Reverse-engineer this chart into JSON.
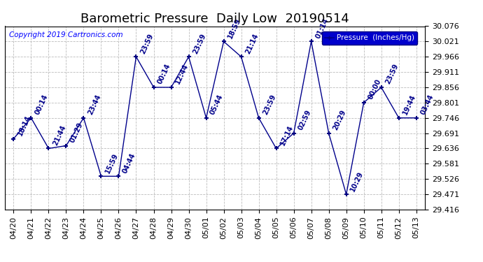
{
  "title": "Barometric Pressure  Daily Low  20190514",
  "copyright": "Copyright 2019 Cartronics.com",
  "legend_label": "Pressure  (Inches/Hg)",
  "dates": [
    "04/20",
    "04/21",
    "04/22",
    "04/23",
    "04/24",
    "04/25",
    "04/26",
    "04/27",
    "04/28",
    "04/29",
    "04/30",
    "05/01",
    "05/02",
    "05/03",
    "05/04",
    "05/05",
    "05/06",
    "05/07",
    "05/08",
    "05/09",
    "05/10",
    "05/11",
    "05/12",
    "05/13"
  ],
  "values": [
    29.671,
    29.746,
    29.636,
    29.646,
    29.746,
    29.536,
    29.536,
    29.966,
    29.856,
    29.856,
    29.966,
    29.746,
    30.021,
    29.966,
    29.746,
    29.636,
    29.691,
    30.021,
    29.691,
    29.471,
    29.801,
    29.856,
    29.746,
    29.746
  ],
  "annotations": [
    "18:14",
    "00:14",
    "21:44",
    "01:29",
    "23:44",
    "15:59",
    "04:44",
    "23:59",
    "00:14",
    "12:44",
    "23:59",
    "05:44",
    "18:59",
    "21:14",
    "23:59",
    "17:14",
    "02:59",
    "01:14",
    "20:29",
    "10:29",
    "00:00",
    "23:59",
    "19:44",
    "03:44"
  ],
  "ylim_min": 29.416,
  "ylim_max": 30.076,
  "yticks": [
    29.416,
    29.471,
    29.526,
    29.581,
    29.636,
    29.691,
    29.746,
    29.801,
    29.856,
    29.911,
    29.966,
    30.021,
    30.076
  ],
  "line_color": "#00008B",
  "marker_color": "#000080",
  "grid_color": "#BBBBBB",
  "background_color": "#FFFFFF",
  "legend_bg": "#0000CC",
  "legend_text_color": "#FFFFFF",
  "title_fontsize": 13,
  "annotation_fontsize": 7,
  "tick_fontsize": 8,
  "copyright_fontsize": 7.5
}
